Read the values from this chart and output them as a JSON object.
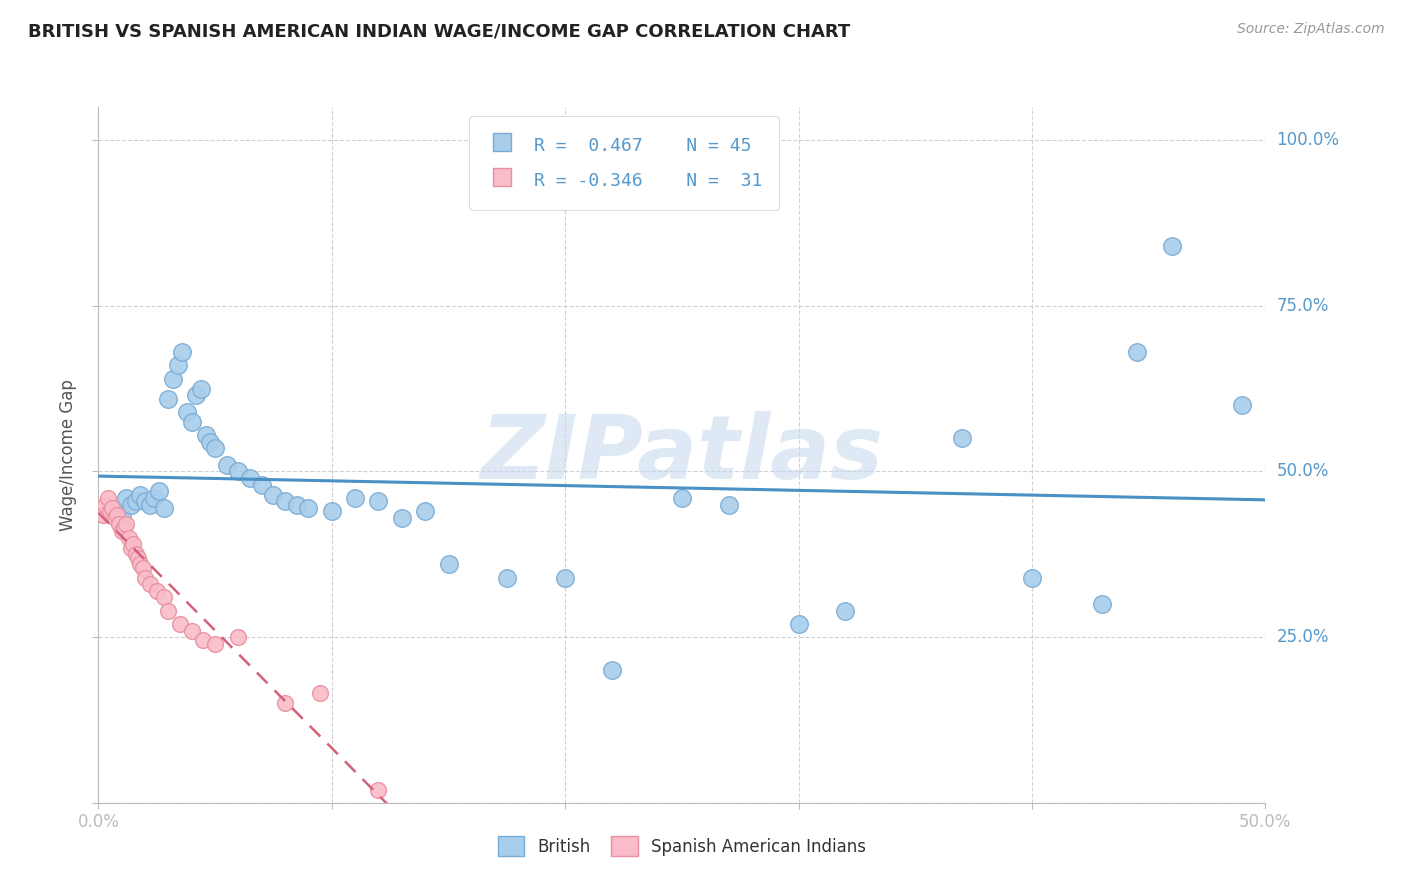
{
  "title": "BRITISH VS SPANISH AMERICAN INDIAN WAGE/INCOME GAP CORRELATION CHART",
  "source": "Source: ZipAtlas.com",
  "ylabel": "Wage/Income Gap",
  "watermark": "ZIPatlas",
  "xlim": [
    0.0,
    0.5
  ],
  "ylim": [
    0.0,
    1.05
  ],
  "yticks": [
    0.25,
    0.5,
    0.75,
    1.0
  ],
  "ytick_labels": [
    "25.0%",
    "50.0%",
    "75.0%",
    "100.0%"
  ],
  "xticks_minor": [
    0.1,
    0.2,
    0.3,
    0.4
  ],
  "british_color": "#A8CEEC",
  "british_edge": "#7AABD4",
  "spanish_color": "#F9BCC8",
  "spanish_edge": "#E8909F",
  "trendline_british_color": "#4A90C4",
  "trendline_spanish_color": "#D4607A",
  "trendline_spanish_dash_color": "#DDAABB",
  "grid_color": "#CCCCCC",
  "background_color": "#FFFFFF",
  "tick_color": "#5599CC",
  "british_points": [
    [
      0.01,
      0.435
    ],
    [
      0.012,
      0.46
    ],
    [
      0.014,
      0.45
    ],
    [
      0.016,
      0.455
    ],
    [
      0.018,
      0.465
    ],
    [
      0.02,
      0.455
    ],
    [
      0.022,
      0.45
    ],
    [
      0.024,
      0.46
    ],
    [
      0.026,
      0.47
    ],
    [
      0.028,
      0.445
    ],
    [
      0.03,
      0.61
    ],
    [
      0.032,
      0.64
    ],
    [
      0.034,
      0.66
    ],
    [
      0.036,
      0.68
    ],
    [
      0.038,
      0.59
    ],
    [
      0.04,
      0.575
    ],
    [
      0.042,
      0.615
    ],
    [
      0.044,
      0.625
    ],
    [
      0.046,
      0.555
    ],
    [
      0.048,
      0.545
    ],
    [
      0.05,
      0.535
    ],
    [
      0.055,
      0.51
    ],
    [
      0.06,
      0.5
    ],
    [
      0.065,
      0.49
    ],
    [
      0.07,
      0.48
    ],
    [
      0.075,
      0.465
    ],
    [
      0.08,
      0.455
    ],
    [
      0.085,
      0.45
    ],
    [
      0.09,
      0.445
    ],
    [
      0.1,
      0.44
    ],
    [
      0.11,
      0.46
    ],
    [
      0.12,
      0.455
    ],
    [
      0.13,
      0.43
    ],
    [
      0.14,
      0.44
    ],
    [
      0.15,
      0.36
    ],
    [
      0.175,
      0.34
    ],
    [
      0.2,
      0.34
    ],
    [
      0.22,
      0.2
    ],
    [
      0.25,
      0.46
    ],
    [
      0.27,
      0.45
    ],
    [
      0.3,
      0.27
    ],
    [
      0.32,
      0.29
    ],
    [
      0.37,
      0.55
    ],
    [
      0.4,
      0.34
    ],
    [
      0.43,
      0.3
    ],
    [
      0.445,
      0.68
    ],
    [
      0.46,
      0.84
    ],
    [
      0.49,
      0.6
    ]
  ],
  "spanish_points": [
    [
      0.002,
      0.435
    ],
    [
      0.003,
      0.45
    ],
    [
      0.004,
      0.46
    ],
    [
      0.005,
      0.44
    ],
    [
      0.006,
      0.445
    ],
    [
      0.007,
      0.43
    ],
    [
      0.008,
      0.435
    ],
    [
      0.009,
      0.42
    ],
    [
      0.01,
      0.41
    ],
    [
      0.011,
      0.415
    ],
    [
      0.012,
      0.42
    ],
    [
      0.013,
      0.4
    ],
    [
      0.014,
      0.385
    ],
    [
      0.015,
      0.39
    ],
    [
      0.016,
      0.375
    ],
    [
      0.017,
      0.37
    ],
    [
      0.018,
      0.36
    ],
    [
      0.019,
      0.355
    ],
    [
      0.02,
      0.34
    ],
    [
      0.022,
      0.33
    ],
    [
      0.025,
      0.32
    ],
    [
      0.028,
      0.31
    ],
    [
      0.03,
      0.29
    ],
    [
      0.035,
      0.27
    ],
    [
      0.04,
      0.26
    ],
    [
      0.045,
      0.245
    ],
    [
      0.05,
      0.24
    ],
    [
      0.06,
      0.25
    ],
    [
      0.08,
      0.15
    ],
    [
      0.095,
      0.165
    ],
    [
      0.12,
      0.02
    ]
  ]
}
